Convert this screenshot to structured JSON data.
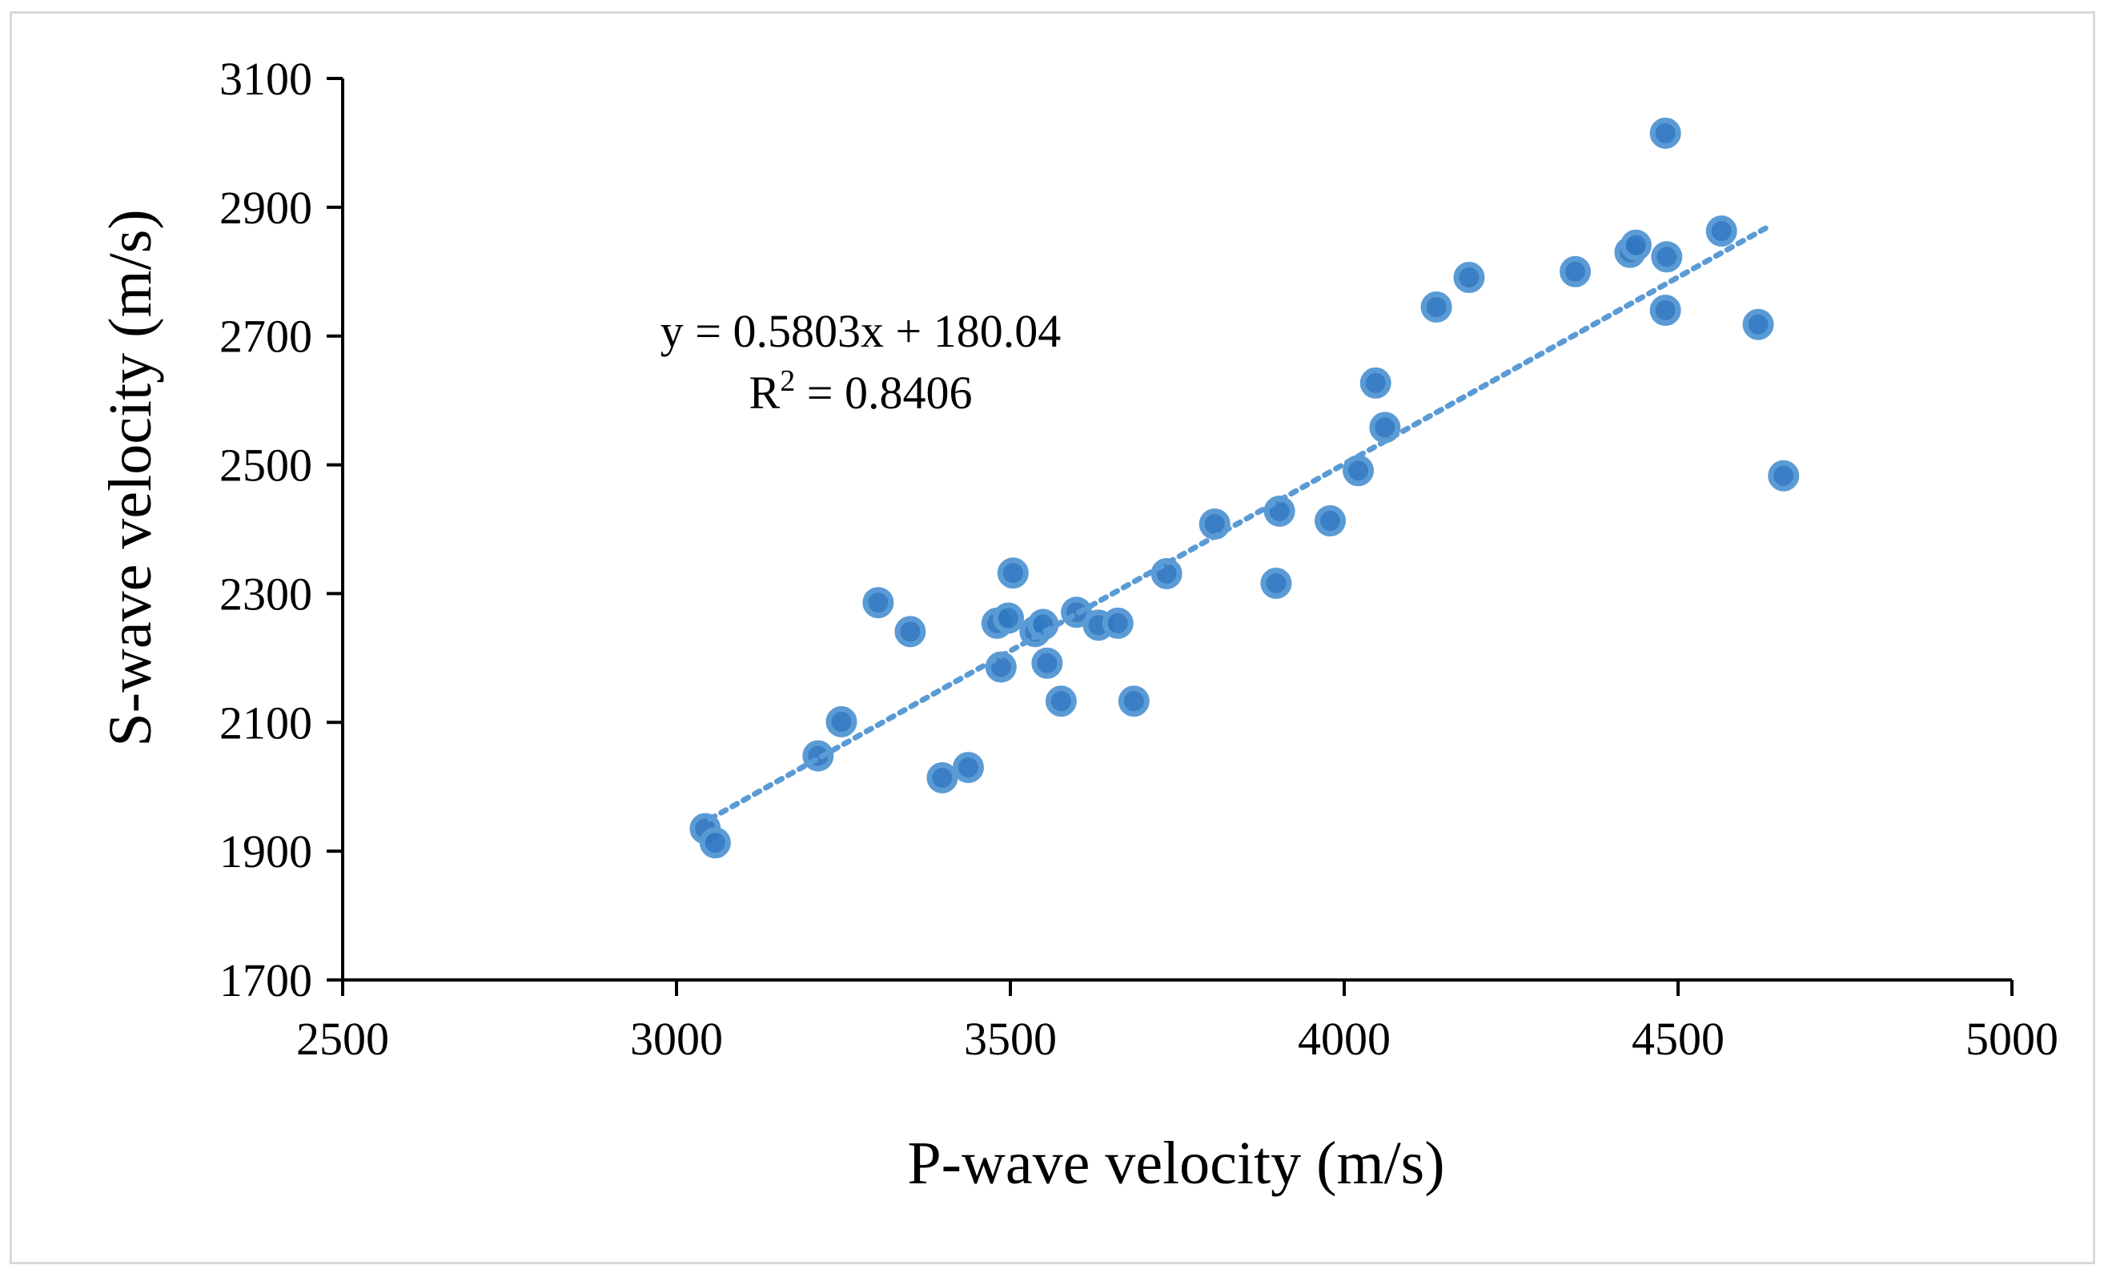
{
  "chart_data": {
    "type": "scatter",
    "xlabel": "P-wave velocity (m/s)",
    "ylabel": "S-wave velocity (m/s)",
    "xlim": [
      2500,
      5000
    ],
    "ylim": [
      1700,
      3100
    ],
    "xticks": [
      2500,
      3000,
      3500,
      4000,
      4500,
      5000
    ],
    "yticks": [
      1700,
      1900,
      2100,
      2300,
      2500,
      2700,
      2900,
      3100
    ],
    "grid": false,
    "legend": "none",
    "marker_color": "#5b9bd5",
    "marker_fill": "#2f77c2",
    "trendline_color": "#5b9bd5",
    "trendline": {
      "type": "linear",
      "slope": 0.5803,
      "intercept": 180.04,
      "x_range": [
        3050,
        4640
      ],
      "equation_label": "y = 0.5803x + 180.04",
      "r2_label_prefix": "R",
      "r2_label_sup": "2",
      "r2_label_value": " = 0.8406"
    },
    "points": [
      {
        "x": 3043,
        "y": 1935
      },
      {
        "x": 3058,
        "y": 1913
      },
      {
        "x": 3212,
        "y": 2048
      },
      {
        "x": 3247,
        "y": 2101
      },
      {
        "x": 3302,
        "y": 2286
      },
      {
        "x": 3350,
        "y": 2241
      },
      {
        "x": 3398,
        "y": 2014
      },
      {
        "x": 3437,
        "y": 2030
      },
      {
        "x": 3480,
        "y": 2254
      },
      {
        "x": 3486,
        "y": 2186
      },
      {
        "x": 3497,
        "y": 2262
      },
      {
        "x": 3504,
        "y": 2332
      },
      {
        "x": 3537,
        "y": 2241
      },
      {
        "x": 3549,
        "y": 2252
      },
      {
        "x": 3555,
        "y": 2192
      },
      {
        "x": 3576,
        "y": 2133
      },
      {
        "x": 3599,
        "y": 2271
      },
      {
        "x": 3632,
        "y": 2251
      },
      {
        "x": 3661,
        "y": 2254
      },
      {
        "x": 3685,
        "y": 2133
      },
      {
        "x": 3734,
        "y": 2331
      },
      {
        "x": 3806,
        "y": 2408
      },
      {
        "x": 3898,
        "y": 2316
      },
      {
        "x": 3903,
        "y": 2428
      },
      {
        "x": 3979,
        "y": 2413
      },
      {
        "x": 4021,
        "y": 2491
      },
      {
        "x": 4047,
        "y": 2627
      },
      {
        "x": 4061,
        "y": 2558
      },
      {
        "x": 4138,
        "y": 2745
      },
      {
        "x": 4187,
        "y": 2791
      },
      {
        "x": 4346,
        "y": 2800
      },
      {
        "x": 4428,
        "y": 2830
      },
      {
        "x": 4437,
        "y": 2841
      },
      {
        "x": 4483,
        "y": 2823
      },
      {
        "x": 4481,
        "y": 2740
      },
      {
        "x": 4481,
        "y": 3015
      },
      {
        "x": 4565,
        "y": 2863
      },
      {
        "x": 4620,
        "y": 2718
      },
      {
        "x": 4658,
        "y": 2483
      }
    ]
  }
}
